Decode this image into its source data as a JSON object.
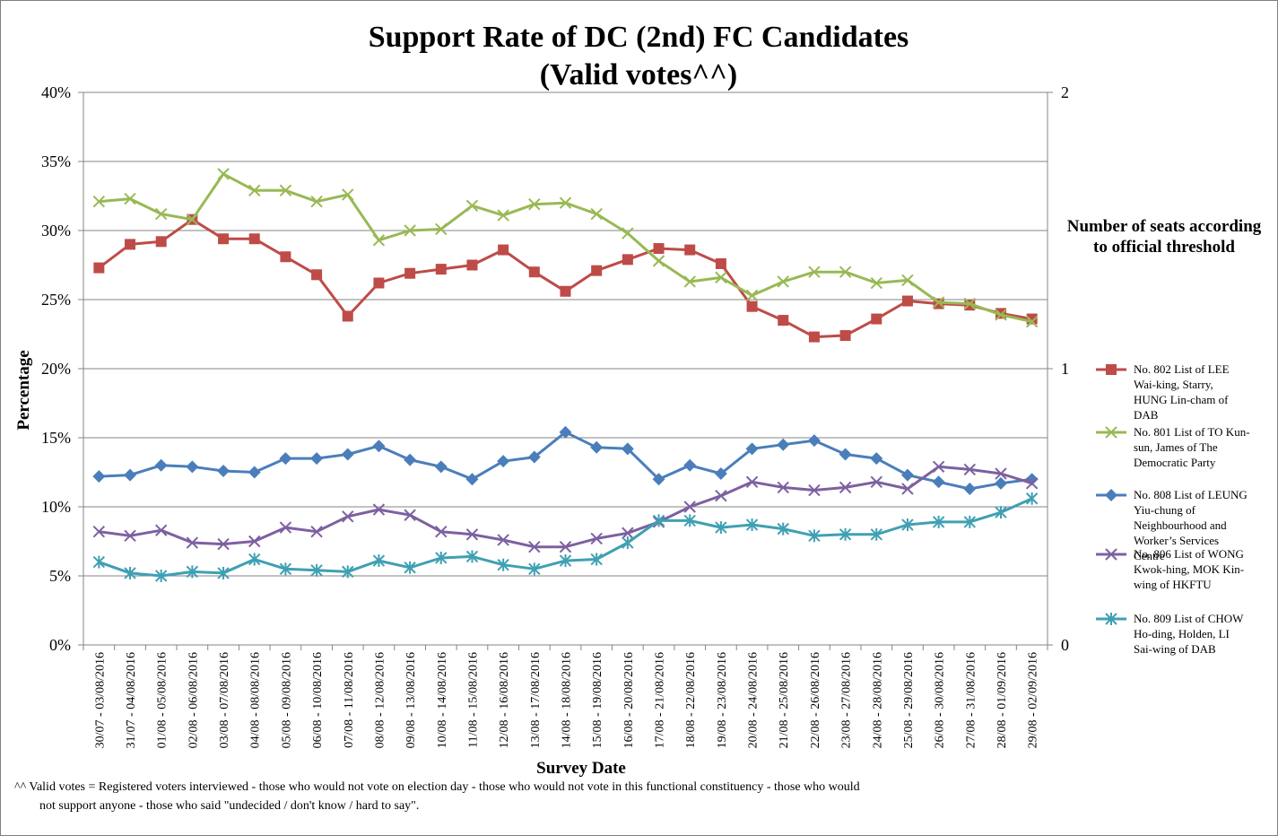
{
  "chart_data": {
    "type": "line",
    "title_lines": [
      "Support Rate of DC (2nd) FC Candidates",
      "(Valid votes^^)"
    ],
    "xlabel": "Survey Date",
    "ylabel": "Percentage",
    "y2label_lines": [
      "Number  of seats according",
      "to official threshold"
    ],
    "ylim": [
      0,
      40
    ],
    "yticks": [
      "0%",
      "5%",
      "10%",
      "15%",
      "20%",
      "25%",
      "30%",
      "35%",
      "40%"
    ],
    "y2lim": [
      0,
      2
    ],
    "y2ticks": [
      "0",
      "1",
      "2"
    ],
    "grid": true,
    "legend_position": "right",
    "categories": [
      "30/07 - 03/08/2016",
      "31/07 - 04/08/2016",
      "01/08 - 05/08/2016",
      "02/08 - 06/08/2016",
      "03/08 - 07/08/2016",
      "04/08 - 08/08/2016",
      "05/08 - 09/08/2016",
      "06/08 - 10/08/2016",
      "07/08 - 11/08/2016",
      "08/08 - 12/08/2016",
      "09/08 - 13/08/2016",
      "10/08 - 14/08/2016",
      "11/08 - 15/08/2016",
      "12/08 - 16/08/2016",
      "13/08 - 17/08/2016",
      "14/08 - 18/08/2016",
      "15/08 - 19/08/2016",
      "16/08 - 20/08/2016",
      "17/08 - 21/08/2016",
      "18/08 - 22/08/2016",
      "19/08 - 23/08/2016",
      "20/08 - 24/08/2016",
      "21/08 - 25/08/2016",
      "22/08 - 26/08/2016",
      "23/08 - 27/08/2016",
      "24/08 - 28/08/2016",
      "25/08 - 29/08/2016",
      "26/08 - 30/08/2016",
      "27/08 - 31/08/2016",
      "28/08 - 01/09/2016",
      "29/08 - 02/09/2016"
    ],
    "series": [
      {
        "name": "No. 802 List of LEE Wai-king, Starry, HUNG Lin-cham of DAB",
        "legend_lines": [
          "No. 802 List of LEE",
          "Wai-king, Starry,",
          "HUNG Lin-cham of",
          "DAB"
        ],
        "color": "#be4b48",
        "marker": "square",
        "values": [
          27.3,
          29.0,
          29.2,
          30.8,
          29.4,
          29.4,
          28.1,
          26.8,
          23.8,
          26.2,
          26.9,
          27.2,
          27.5,
          28.6,
          27.0,
          25.6,
          27.1,
          27.9,
          28.7,
          28.6,
          27.6,
          24.5,
          23.5,
          22.3,
          22.4,
          23.6,
          24.9,
          24.7,
          24.6,
          24.0,
          23.6
        ]
      },
      {
        "name": "No. 801 List of TO Kun-sun, James of The Democratic Party",
        "legend_lines": [
          "No. 801 List of TO Kun-",
          "sun, James of The",
          "Democratic Party"
        ],
        "color": "#98b954",
        "marker": "x",
        "values": [
          32.1,
          32.3,
          31.2,
          30.8,
          34.1,
          32.9,
          32.9,
          32.1,
          32.6,
          29.3,
          30.0,
          30.1,
          31.8,
          31.1,
          31.9,
          32.0,
          31.2,
          29.8,
          27.8,
          26.3,
          26.6,
          25.3,
          26.3,
          27.0,
          27.0,
          26.2,
          26.4,
          24.8,
          24.7,
          23.9,
          23.4
        ]
      },
      {
        "name": "No. 808 List of LEUNG Yiu-chung of Neighbourhood and Worker's Services Centre",
        "legend_lines": [
          "No. 808 List of LEUNG",
          "Yiu-chung of",
          "Neighbourhood and",
          "Worker’s Services",
          "Centre"
        ],
        "color": "#4a7ebb",
        "marker": "diamond",
        "values": [
          12.2,
          12.3,
          13.0,
          12.9,
          12.6,
          12.5,
          13.5,
          13.5,
          13.8,
          14.4,
          13.4,
          12.9,
          12.0,
          13.3,
          13.6,
          15.4,
          14.3,
          14.2,
          12.0,
          13.0,
          12.4,
          14.2,
          14.5,
          14.8,
          13.8,
          13.5,
          12.3,
          11.8,
          11.3,
          11.7,
          12.0
        ]
      },
      {
        "name": "No. 806 List of WONG Kwok-hing, MOK Kin-wing of HKFTU",
        "legend_lines": [
          "No. 806 List of WONG",
          "Kwok-hing, MOK Kin-",
          "wing of HKFTU"
        ],
        "color": "#7d60a0",
        "marker": "x",
        "values": [
          8.2,
          7.9,
          8.3,
          7.4,
          7.3,
          7.5,
          8.5,
          8.2,
          9.3,
          9.8,
          9.4,
          8.2,
          8.0,
          7.6,
          7.1,
          7.1,
          7.7,
          8.1,
          8.9,
          10.0,
          10.8,
          11.8,
          11.4,
          11.2,
          11.4,
          11.8,
          11.3,
          12.9,
          12.7,
          12.4,
          11.7
        ]
      },
      {
        "name": "No. 809 List of CHOW Ho-ding, Holden, LI Sai-wing of DAB",
        "legend_lines": [
          "No. 809 List of CHOW",
          "Ho-ding, Holden, LI",
          "Sai-wing of DAB"
        ],
        "color": "#3fa0b3",
        "marker": "asterisk",
        "values": [
          6.0,
          5.2,
          5.0,
          5.3,
          5.2,
          6.2,
          5.5,
          5.4,
          5.3,
          6.1,
          5.6,
          6.3,
          6.4,
          5.8,
          5.5,
          6.1,
          6.2,
          7.4,
          9.0,
          9.0,
          8.5,
          8.7,
          8.4,
          7.9,
          8.0,
          8.0,
          8.7,
          8.9,
          8.9,
          9.6,
          10.6
        ]
      }
    ],
    "footnote_lines": [
      "^^ Valid votes = Registered voters interviewed - those who would not vote on election day - those who would not vote in this functional constituency - those who would",
      "not support anyone - those who said \"undecided / don't know / hard to say\"."
    ]
  }
}
